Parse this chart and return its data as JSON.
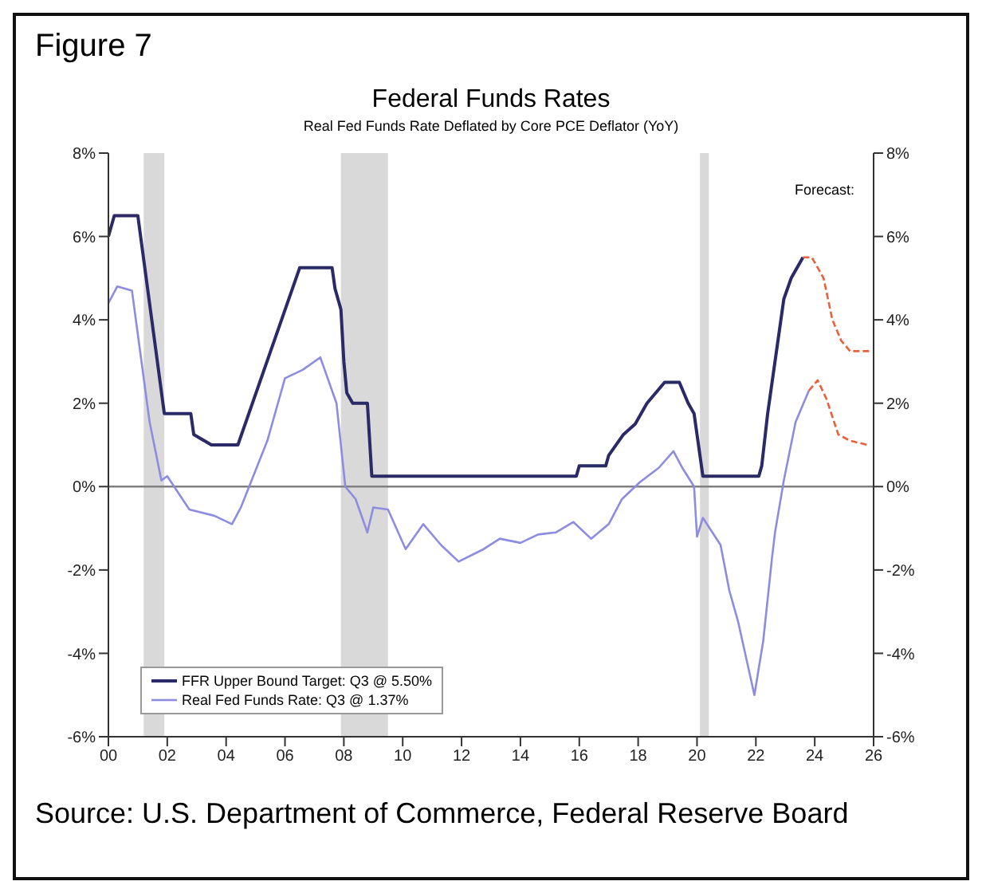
{
  "chart_data": {
    "type": "line",
    "title": "Federal Funds Rates",
    "subtitle": "Real Fed Funds Rate Deflated by Core PCE Deflator (YoY)",
    "annotations": [
      "Figure 7",
      "Forecast:",
      "Source: U.S. Department of Commerce, Federal Reserve Board"
    ],
    "series": [
      {
        "name": "FFR Upper Bound Target: Q3 @ 5.50%",
        "color": "#2a2a66",
        "line_style": "solid",
        "x": [
          2000.0,
          2000.2,
          2001.0,
          2001.9,
          2002.8,
          2002.9,
          2003.5,
          2004.4,
          2006.5,
          2007.6,
          2007.7,
          2007.9,
          2008.0,
          2008.1,
          2008.3,
          2008.8,
          2008.95,
          2015.9,
          2016.0,
          2016.9,
          2017.0,
          2017.5,
          2017.9,
          2018.3,
          2018.9,
          2019.4,
          2019.7,
          2019.9,
          2020.2,
          2022.1,
          2022.2,
          2022.4,
          2022.7,
          2022.95,
          2023.2,
          2023.6
        ],
        "values": [
          6.0,
          6.5,
          6.5,
          1.75,
          1.75,
          1.25,
          1.0,
          1.0,
          5.25,
          5.25,
          4.75,
          4.25,
          3.0,
          2.25,
          2.0,
          2.0,
          0.25,
          0.25,
          0.5,
          0.5,
          0.75,
          1.25,
          1.5,
          2.0,
          2.5,
          2.5,
          2.0,
          1.75,
          0.25,
          0.25,
          0.5,
          1.75,
          3.25,
          4.5,
          5.0,
          5.5
        ]
      },
      {
        "name": "Real Fed Funds Rate: Q3 @ 1.37%",
        "color": "#8c8ce0",
        "line_style": "solid",
        "x": [
          2000.0,
          2000.3,
          2000.8,
          2001.4,
          2001.8,
          2002.0,
          2002.75,
          2003.6,
          2004.2,
          2004.5,
          2005.4,
          2006.0,
          2006.6,
          2007.2,
          2007.4,
          2007.75,
          2008.05,
          2008.4,
          2008.8,
          2009.0,
          2009.5,
          2010.1,
          2010.7,
          2011.3,
          2011.9,
          2012.75,
          2013.3,
          2014.0,
          2014.6,
          2015.2,
          2015.8,
          2016.4,
          2017.0,
          2017.45,
          2018.05,
          2018.7,
          2019.2,
          2019.5,
          2019.9,
          2020.0,
          2020.2,
          2020.8,
          2021.1,
          2021.4,
          2021.95,
          2022.25,
          2022.55,
          2022.65,
          2022.95,
          2023.35,
          2023.8
        ],
        "values": [
          4.4,
          4.8,
          4.7,
          1.55,
          0.15,
          0.25,
          -0.55,
          -0.7,
          -0.9,
          -0.5,
          1.1,
          2.6,
          2.8,
          3.1,
          2.7,
          2.0,
          0.0,
          -0.3,
          -1.1,
          -0.5,
          -0.55,
          -1.5,
          -0.9,
          -1.4,
          -1.8,
          -1.5,
          -1.25,
          -1.35,
          -1.15,
          -1.1,
          -0.85,
          -1.25,
          -0.9,
          -0.3,
          0.1,
          0.45,
          0.85,
          0.45,
          0.0,
          -1.2,
          -0.75,
          -1.4,
          -2.5,
          -3.25,
          -5.0,
          -3.7,
          -1.7,
          -1.1,
          0.15,
          1.55,
          2.3
        ]
      },
      {
        "color": "#e8603c",
        "line_style": "dashed",
        "x": [
          2023.6,
          2023.9,
          2024.3,
          2024.6,
          2024.9,
          2025.2,
          2025.9
        ],
        "values": [
          5.5,
          5.5,
          5.0,
          4.0,
          3.5,
          3.25,
          3.25
        ]
      },
      {
        "color": "#e8603c",
        "line_style": "dashed",
        "x": [
          2023.8,
          2024.1,
          2024.4,
          2024.8,
          2025.2,
          2025.8
        ],
        "values": [
          2.3,
          2.55,
          2.1,
          1.25,
          1.1,
          1.0
        ]
      }
    ],
    "xlim": [
      2000,
      2026
    ],
    "xticks": [
      {
        "value": 2000,
        "label": "00"
      },
      {
        "value": 2002,
        "label": "02"
      },
      {
        "value": 2004,
        "label": "04"
      },
      {
        "value": 2006,
        "label": "06"
      },
      {
        "value": 2008,
        "label": "08"
      },
      {
        "value": 2010,
        "label": "10"
      },
      {
        "value": 2012,
        "label": "12"
      },
      {
        "value": 2014,
        "label": "14"
      },
      {
        "value": 2016,
        "label": "16"
      },
      {
        "value": 2018,
        "label": "18"
      },
      {
        "value": 2020,
        "label": "20"
      },
      {
        "value": 2022,
        "label": "22"
      },
      {
        "value": 2024,
        "label": "24"
      },
      {
        "value": 2026,
        "label": "26"
      }
    ],
    "ylim": [
      -6,
      8
    ],
    "yticks": [
      {
        "value": -6,
        "label": "-6%"
      },
      {
        "value": -4,
        "label": "-4%"
      },
      {
        "value": -2,
        "label": "-2%"
      },
      {
        "value": 0,
        "label": "0%"
      },
      {
        "value": 2,
        "label": "2%"
      },
      {
        "value": 4,
        "label": "4%"
      },
      {
        "value": 6,
        "label": "6%"
      },
      {
        "value": 8,
        "label": "8%"
      }
    ],
    "y2lim": [
      -6,
      8
    ],
    "y2ticks": [
      {
        "value": -6,
        "label": "-6%"
      },
      {
        "value": -4,
        "label": "-4%"
      },
      {
        "value": -2,
        "label": "-2%"
      },
      {
        "value": 0,
        "label": "0%"
      },
      {
        "value": 2,
        "label": "2%"
      },
      {
        "value": 4,
        "label": "4%"
      },
      {
        "value": 6,
        "label": "6%"
      },
      {
        "value": 8,
        "label": "8%"
      }
    ],
    "ref_lines": [
      {
        "axis": "y",
        "value": 0,
        "color": "#808080"
      }
    ],
    "bands": [
      {
        "axis": "x",
        "from": 2001.2,
        "to": 2001.9,
        "color": "#d9d9d9"
      },
      {
        "axis": "x",
        "from": 2007.9,
        "to": 2009.5,
        "color": "#d9d9d9"
      },
      {
        "axis": "x",
        "from": 2020.1,
        "to": 2020.4,
        "color": "#d9d9d9"
      }
    ],
    "legend": "bottom left",
    "marker": "none"
  }
}
